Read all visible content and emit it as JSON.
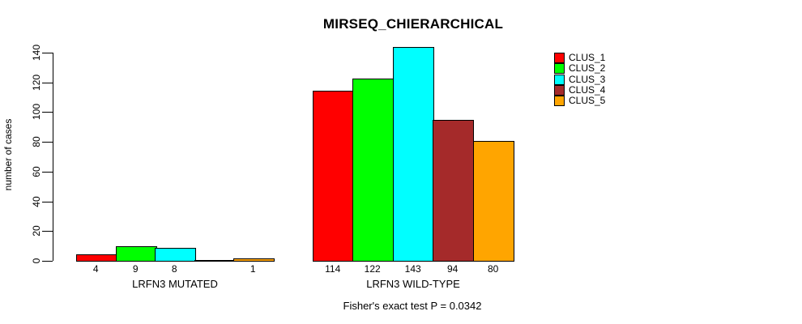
{
  "title": "MIRSEQ_CHIERARCHICAL",
  "y_axis": {
    "label": "number of cases",
    "tick_labels": [
      "0",
      "20",
      "40",
      "60",
      "80",
      "100",
      "120",
      "140"
    ]
  },
  "legend": {
    "items": [
      {
        "label": "CLUS_1",
        "color": "#FF0000"
      },
      {
        "label": "CLUS_2",
        "color": "#00FF00"
      },
      {
        "label": "CLUS_3",
        "color": "#00FFFF"
      },
      {
        "label": "CLUS_4",
        "color": "#A52A2A"
      },
      {
        "label": "CLUS_5",
        "color": "#FFA500"
      }
    ]
  },
  "chart_data": {
    "type": "bar",
    "title": "MIRSEQ_CHIERARCHICAL",
    "xlabel": "",
    "ylabel": "number of cases",
    "ylim": [
      0,
      140
    ],
    "yticks": [
      0,
      20,
      40,
      60,
      80,
      100,
      120,
      140
    ],
    "grid": false,
    "legend_position": "right",
    "series_names": [
      "CLUS_1",
      "CLUS_2",
      "CLUS_3",
      "CLUS_4",
      "CLUS_5"
    ],
    "colors": [
      "#FF0000",
      "#00FF00",
      "#00FFFF",
      "#A52A2A",
      "#FFA500"
    ],
    "groups": [
      {
        "label": "LRFN3 MUTATED",
        "values": [
          4,
          9,
          8,
          0,
          1
        ],
        "bar_labels": [
          "4",
          "9",
          "8",
          "",
          "1"
        ]
      },
      {
        "label": "LRFN3 WILD-TYPE",
        "values": [
          114,
          122,
          143,
          94,
          80
        ],
        "bar_labels": [
          "114",
          "122",
          "143",
          "94",
          "80"
        ]
      }
    ],
    "annotation": "Fisher's exact test P = 0.0342"
  }
}
